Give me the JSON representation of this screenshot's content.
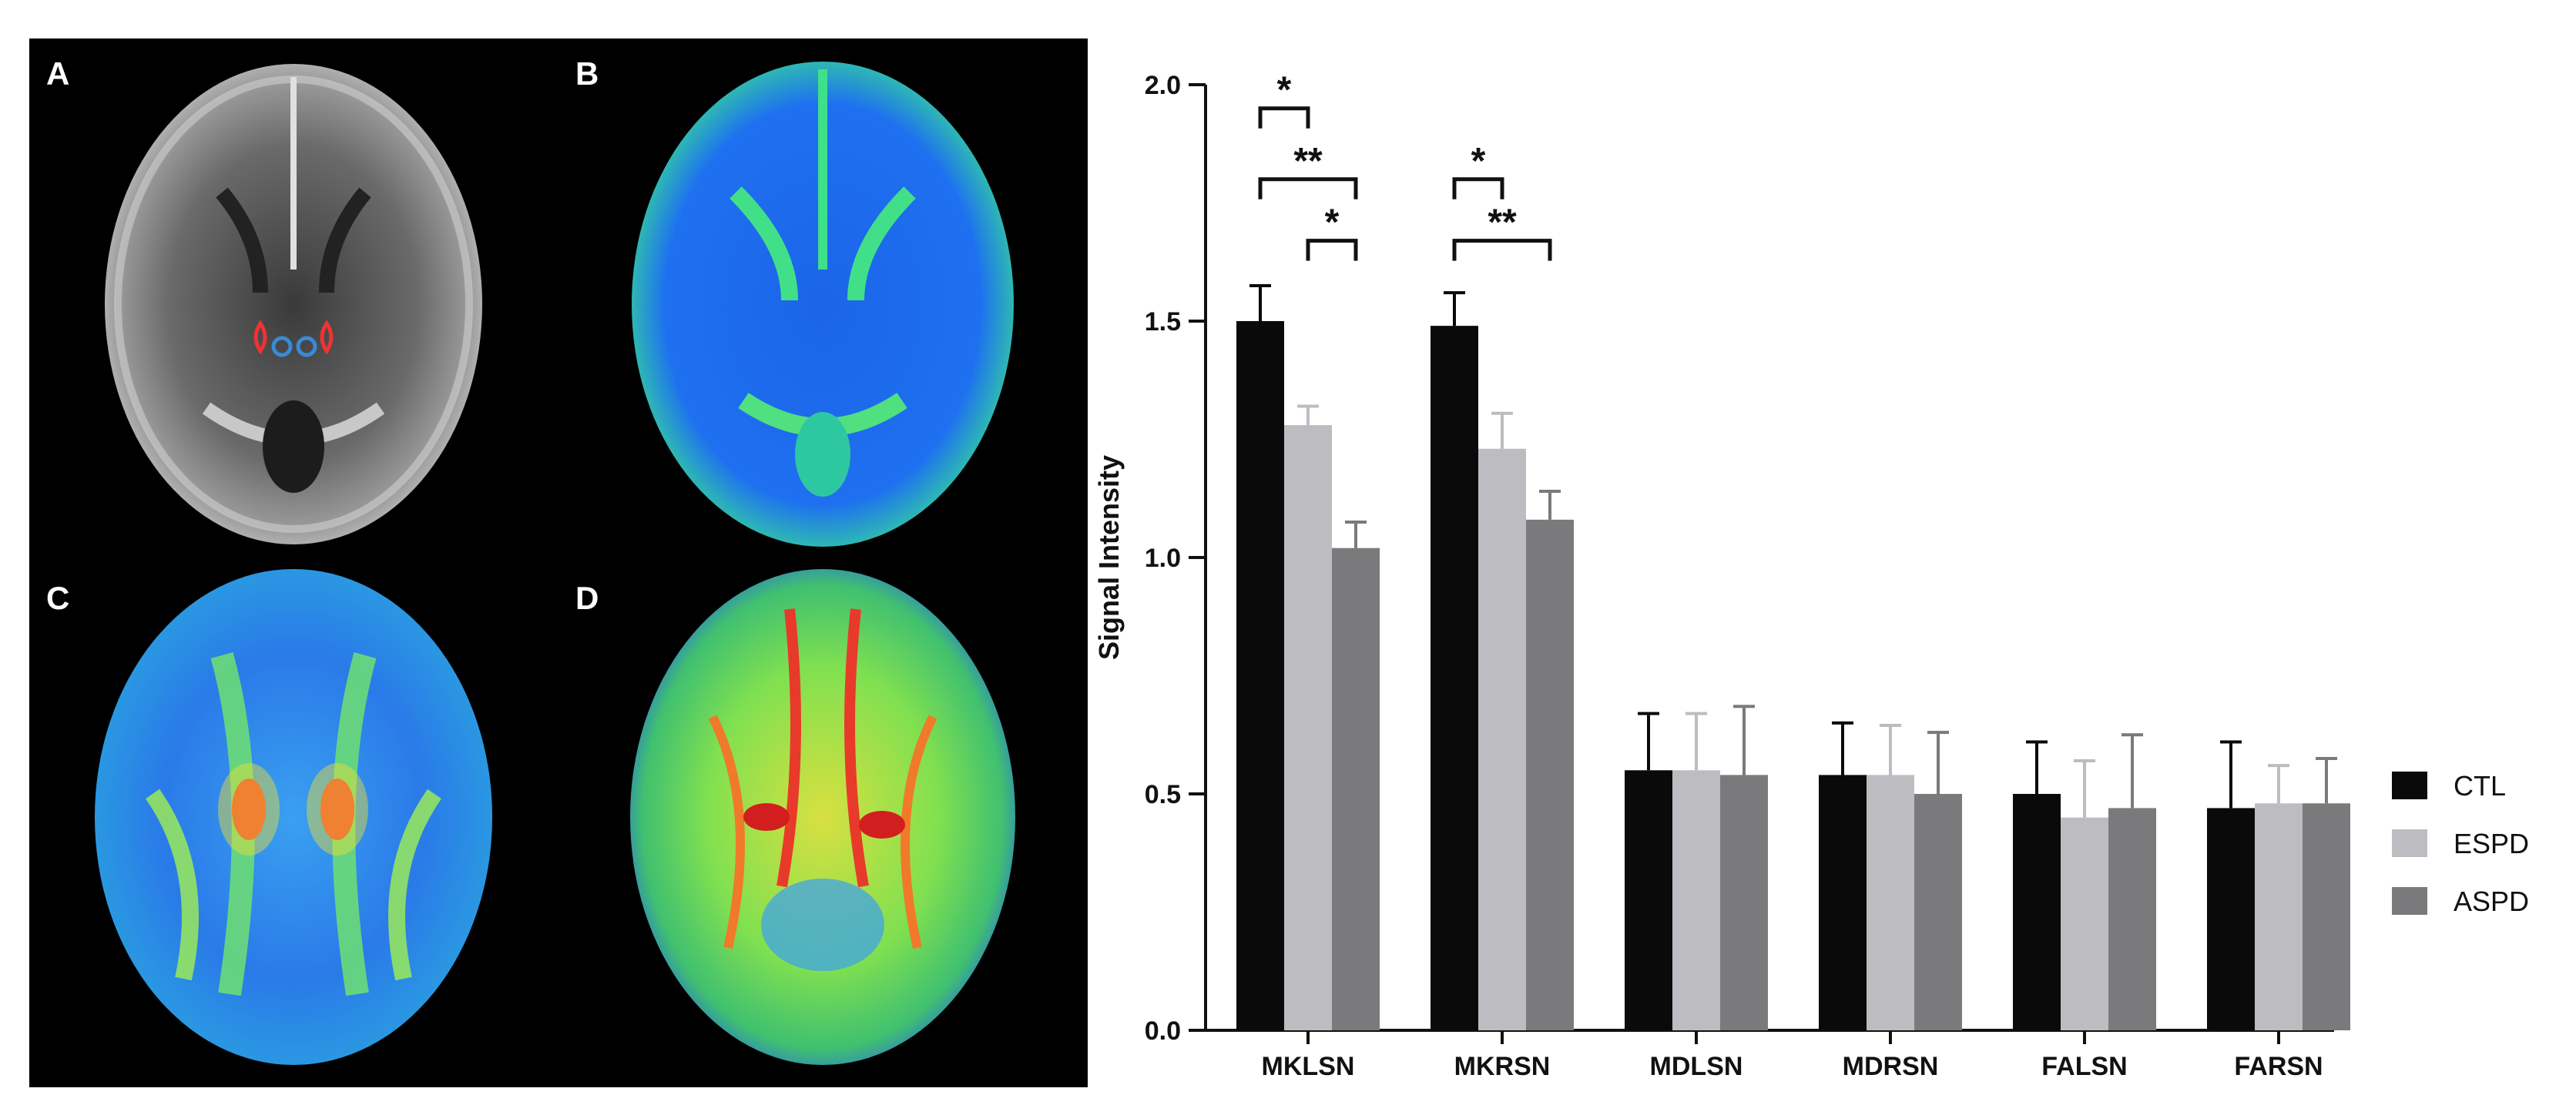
{
  "panels": [
    {
      "letter": "A",
      "type": "t2-grayscale"
    },
    {
      "letter": "B",
      "type": "parametric-map-blue-green"
    },
    {
      "letter": "C",
      "type": "parametric-map-rainbow"
    },
    {
      "letter": "D",
      "type": "parametric-map-rainbow-high"
    }
  ],
  "colors": {
    "CTL": "#0a0a0a",
    "ESPD": "#bdbdc1",
    "ASPD": "#7a7a7c"
  },
  "chart_data": {
    "type": "bar",
    "ylabel": "Signal Intensity",
    "xlabel": "",
    "ylim": [
      0,
      2.0
    ],
    "yticks": [
      "0.0",
      "0.5",
      "1.0",
      "1.5",
      "2.0"
    ],
    "grid": false,
    "legend_position": "right",
    "categories": [
      "MKLSN",
      "MKRSN",
      "MDLSN",
      "MDRSN",
      "FALSN",
      "FARSN"
    ],
    "series": [
      {
        "name": "CTL",
        "values": [
          1.5,
          1.49,
          0.55,
          0.54,
          0.5,
          0.47
        ],
        "errors": [
          0.075,
          0.07,
          0.12,
          0.11,
          0.11,
          0.14
        ]
      },
      {
        "name": "ESPD",
        "values": [
          1.28,
          1.23,
          0.55,
          0.54,
          0.45,
          0.48
        ],
        "errors": [
          0.04,
          0.075,
          0.12,
          0.105,
          0.12,
          0.08
        ]
      },
      {
        "name": "ASPD",
        "values": [
          1.02,
          1.08,
          0.54,
          0.5,
          0.47,
          0.48
        ],
        "errors": [
          0.055,
          0.06,
          0.145,
          0.13,
          0.155,
          0.095
        ]
      }
    ],
    "significance": [
      {
        "category": "MKLSN",
        "from": "CTL",
        "to": "ESPD",
        "label": "*",
        "level": 1.95
      },
      {
        "category": "MKLSN",
        "from": "CTL",
        "to": "ASPD",
        "label": "**",
        "level": 1.8
      },
      {
        "category": "MKLSN",
        "from": "ESPD",
        "to": "ASPD",
        "label": "*",
        "level": 1.67
      },
      {
        "category": "MKRSN",
        "from": "CTL",
        "to": "ESPD",
        "label": "*",
        "level": 1.8
      },
      {
        "category": "MKRSN",
        "from": "CTL",
        "to": "ASPD",
        "label": "**",
        "level": 1.67
      }
    ]
  }
}
